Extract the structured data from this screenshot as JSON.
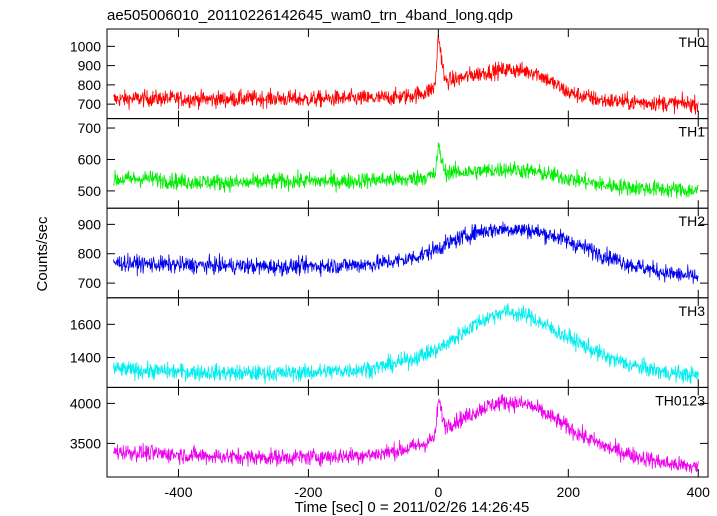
{
  "chart_data": {
    "type": "line",
    "title": "ae505006010_20110226142645_wam0_trn_4band_long.qdp",
    "xlabel": "Time [sec] 0 = 2011/02/26 14:26:45",
    "ylabel": "Counts/sec",
    "xlim": [
      -510,
      415
    ],
    "x_ticks": [
      "-400",
      "-200",
      "0",
      "200",
      "400"
    ],
    "x_tick_values": [
      -400,
      -200,
      0,
      200,
      400
    ],
    "grid": false,
    "panels": [
      {
        "label": "TH0",
        "color": "#ff0000",
        "ylim": [
          625,
          1090
        ],
        "y_tick_values": [
          700,
          800,
          900,
          1000
        ],
        "y_ticks": [
          "700",
          "800",
          "900",
          "1000"
        ],
        "x": [
          -500,
          -450,
          -400,
          -350,
          -300,
          -250,
          -200,
          -150,
          -100,
          -50,
          -20,
          -5,
          0,
          10,
          30,
          50,
          80,
          110,
          150,
          200,
          250,
          300,
          350,
          400
        ],
        "y": [
          725,
          730,
          728,
          725,
          728,
          730,
          725,
          730,
          730,
          740,
          760,
          790,
          1060,
          820,
          830,
          850,
          870,
          880,
          865,
          760,
          720,
          710,
          705,
          700
        ]
      },
      {
        "label": "TH1",
        "color": "#00ee00",
        "ylim": [
          445,
          730
        ],
        "y_tick_values": [
          500,
          600,
          700
        ],
        "y_ticks": [
          "500",
          "600",
          "700"
        ],
        "x": [
          -500,
          -450,
          -400,
          -350,
          -300,
          -250,
          -200,
          -150,
          -100,
          -50,
          -20,
          -5,
          0,
          10,
          30,
          50,
          80,
          110,
          150,
          200,
          250,
          300,
          350,
          400
        ],
        "y": [
          535,
          540,
          530,
          528,
          525,
          530,
          532,
          530,
          535,
          535,
          545,
          550,
          640,
          560,
          560,
          560,
          565,
          570,
          560,
          540,
          520,
          510,
          505,
          500
        ]
      },
      {
        "label": "TH2",
        "color": "#0000ee",
        "ylim": [
          650,
          955
        ],
        "y_tick_values": [
          700,
          800,
          900
        ],
        "y_ticks": [
          "700",
          "800",
          "900"
        ],
        "x": [
          -500,
          -450,
          -400,
          -350,
          -300,
          -250,
          -200,
          -150,
          -100,
          -50,
          -20,
          0,
          30,
          60,
          100,
          140,
          180,
          220,
          260,
          300,
          350,
          400
        ],
        "y": [
          770,
          765,
          762,
          760,
          758,
          755,
          758,
          760,
          765,
          780,
          800,
          820,
          850,
          875,
          885,
          880,
          860,
          825,
          790,
          760,
          735,
          720
        ]
      },
      {
        "label": "TH3",
        "color": "#00eeee",
        "ylim": [
          1220,
          1760
        ],
        "y_tick_values": [
          1400,
          1600
        ],
        "y_ticks": [
          "1400",
          "1600"
        ],
        "x": [
          -500,
          -450,
          -400,
          -350,
          -300,
          -250,
          -200,
          -150,
          -100,
          -50,
          0,
          30,
          60,
          100,
          140,
          180,
          220,
          260,
          300,
          350,
          400
        ],
        "y": [
          1330,
          1320,
          1315,
          1310,
          1305,
          1305,
          1310,
          1320,
          1335,
          1380,
          1450,
          1530,
          1610,
          1680,
          1650,
          1560,
          1480,
          1400,
          1350,
          1310,
          1290
        ]
      },
      {
        "label": "TH0123",
        "color": "#ee00ee",
        "ylim": [
          3080,
          4200
        ],
        "y_tick_values": [
          3500,
          4000
        ],
        "y_ticks": [
          "3500",
          "4000"
        ],
        "x": [
          -500,
          -450,
          -400,
          -350,
          -300,
          -250,
          -200,
          -150,
          -100,
          -50,
          -20,
          -5,
          0,
          10,
          40,
          70,
          100,
          140,
          180,
          220,
          260,
          300,
          350,
          400
        ],
        "y": [
          3400,
          3380,
          3360,
          3340,
          3330,
          3325,
          3330,
          3340,
          3360,
          3430,
          3500,
          3580,
          4050,
          3720,
          3820,
          3950,
          4020,
          3980,
          3800,
          3600,
          3450,
          3350,
          3250,
          3200
        ]
      }
    ]
  }
}
